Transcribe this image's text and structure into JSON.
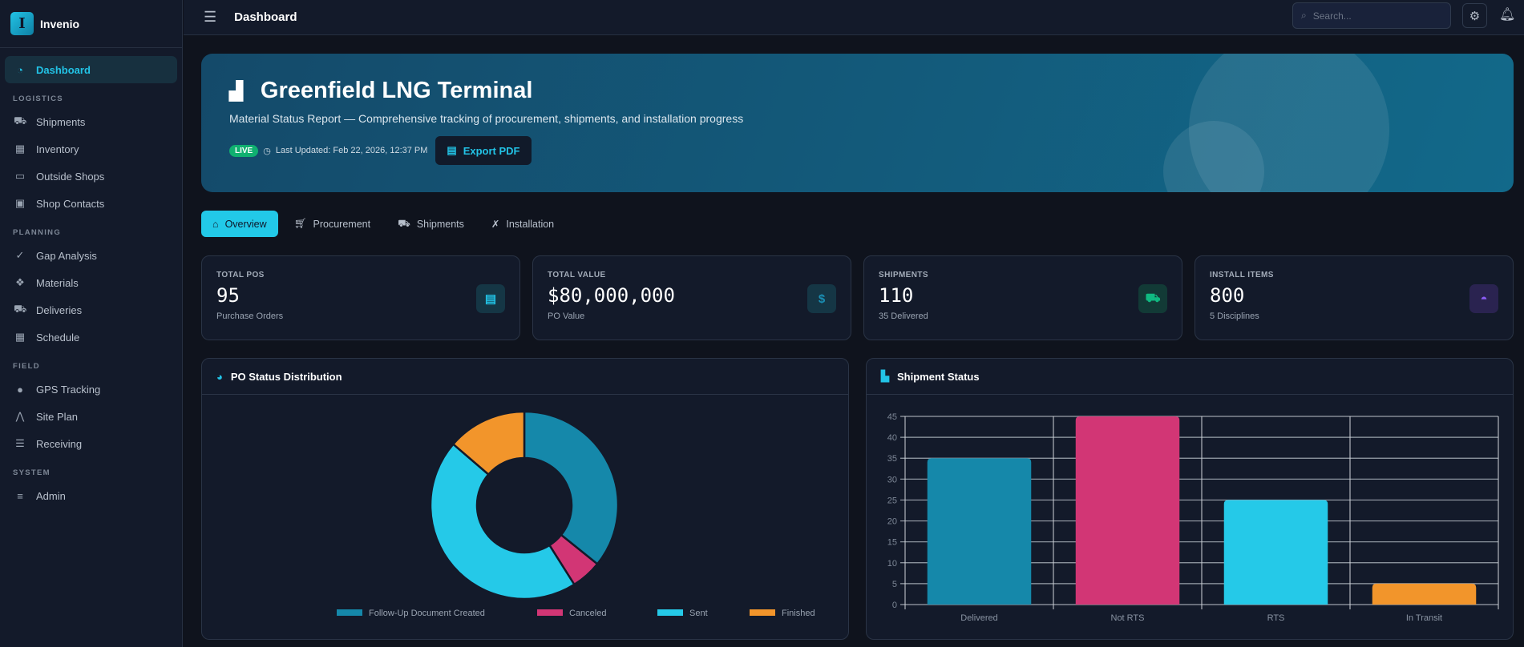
{
  "brand": {
    "name": "Invenio",
    "logo_letter": "I"
  },
  "sidebar": {
    "active": {
      "label": "Dashboard",
      "icon": "gauge-icon"
    },
    "sections": [
      {
        "title": "LOGISTICS",
        "items": [
          {
            "label": "Shipments",
            "icon": "truck-fast-icon"
          },
          {
            "label": "Inventory",
            "icon": "warehouse-icon"
          },
          {
            "label": "Outside Shops",
            "icon": "store-icon"
          },
          {
            "label": "Shop Contacts",
            "icon": "address-book-icon"
          }
        ]
      },
      {
        "title": "PLANNING",
        "items": [
          {
            "label": "Gap Analysis",
            "icon": "clipboard-check-icon"
          },
          {
            "label": "Materials",
            "icon": "cubes-icon"
          },
          {
            "label": "Deliveries",
            "icon": "truck-icon"
          },
          {
            "label": "Schedule",
            "icon": "calendar-icon"
          }
        ]
      },
      {
        "title": "FIELD",
        "items": [
          {
            "label": "GPS Tracking",
            "icon": "map-pin-icon"
          },
          {
            "label": "Site Plan",
            "icon": "compass-drafting-icon"
          },
          {
            "label": "Receiving",
            "icon": "clipboard-list-icon"
          }
        ]
      },
      {
        "title": "SYSTEM",
        "items": [
          {
            "label": "Admin",
            "icon": "database-icon"
          }
        ]
      }
    ]
  },
  "header": {
    "title": "Dashboard",
    "search_placeholder": "Search..."
  },
  "hero": {
    "title": "Greenfield LNG Terminal",
    "subtitle": "Material Status Report — Comprehensive tracking of procurement, shipments, and installation progress",
    "badge": "LIVE",
    "last_updated": "Last Updated: Feb 22, 2026, 12:37 PM",
    "export_label": "Export PDF"
  },
  "tabs": [
    {
      "label": "Overview",
      "icon": "home-icon",
      "active": true
    },
    {
      "label": "Procurement",
      "icon": "cart-icon"
    },
    {
      "label": "Shipments",
      "icon": "truck-icon"
    },
    {
      "label": "Installation",
      "icon": "tools-icon"
    }
  ],
  "kpis": [
    {
      "label": "TOTAL POS",
      "value": "95",
      "note": "Purchase Orders",
      "icon": "file-invoice-icon",
      "color": "#22c3e6",
      "bg": "#153645"
    },
    {
      "label": "TOTAL VALUE",
      "value": "$80,000,000",
      "note": "PO Value",
      "icon": "dollar-icon",
      "color": "#1a8fb5",
      "bg": "#153645"
    },
    {
      "label": "SHIPMENTS",
      "value": "110",
      "note": "35 Delivered",
      "icon": "truck-fast-icon",
      "color": "#10b981",
      "bg": "#123a36"
    },
    {
      "label": "INSTALL ITEMS",
      "value": "800",
      "note": "5 Disciplines",
      "icon": "hard-hat-icon",
      "color": "#8b5cf6",
      "bg": "#2a2350"
    }
  ],
  "chart_data": [
    {
      "type": "pie",
      "title": "PO Status Distribution",
      "donut": true,
      "legend_position": "bottom",
      "categories": [
        "Follow-Up Document Created",
        "Canceled",
        "Sent",
        "Finished"
      ],
      "values": [
        34,
        5,
        43,
        13
      ],
      "colors": [
        "#1588aa",
        "#d23675",
        "#25c9e8",
        "#f2952b"
      ]
    },
    {
      "type": "bar",
      "title": "Shipment Status",
      "categories": [
        "Delivered",
        "Not RTS",
        "RTS",
        "In Transit"
      ],
      "values": [
        35,
        45,
        25,
        5
      ],
      "ylim": [
        0,
        45
      ],
      "yticks": [
        0,
        5,
        10,
        15,
        20,
        25,
        30,
        35,
        40,
        45
      ],
      "grid": true,
      "colors": [
        "#1588aa",
        "#d23675",
        "#25c9e8",
        "#f2952b"
      ]
    }
  ]
}
